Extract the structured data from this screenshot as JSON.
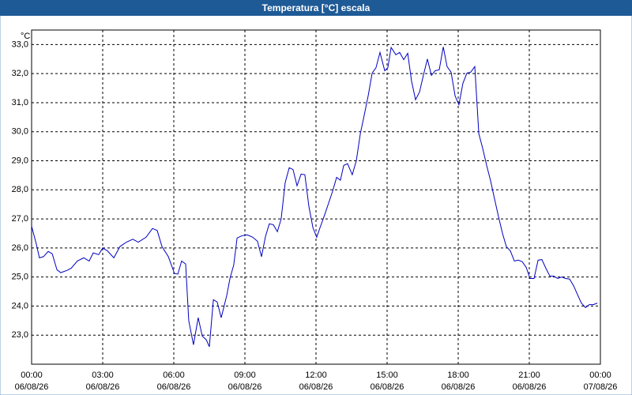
{
  "chart_data": {
    "type": "line",
    "title": "Temperatura [°C] escala",
    "y_unit": "°C",
    "x": [
      0,
      0.2,
      0.33,
      0.5,
      0.7,
      0.87,
      1.07,
      1.23,
      1.5,
      1.67,
      1.93,
      2.2,
      2.43,
      2.6,
      2.83,
      3.0,
      3.2,
      3.47,
      3.73,
      4.0,
      4.27,
      4.5,
      4.83,
      5.1,
      5.3,
      5.5,
      5.77,
      6.03,
      6.17,
      6.33,
      6.5,
      6.63,
      6.83,
      7.03,
      7.2,
      7.37,
      7.5,
      7.67,
      7.83,
      8.0,
      8.23,
      8.37,
      8.53,
      8.67,
      8.87,
      9.1,
      9.33,
      9.53,
      9.7,
      9.87,
      10.03,
      10.2,
      10.37,
      10.53,
      10.7,
      10.87,
      11.03,
      11.2,
      11.37,
      11.53,
      11.7,
      11.87,
      12.03,
      12.17,
      12.37,
      12.53,
      12.7,
      12.87,
      13.03,
      13.17,
      13.33,
      13.53,
      13.7,
      13.87,
      14.03,
      14.2,
      14.37,
      14.53,
      14.7,
      14.9,
      15.03,
      15.17,
      15.37,
      15.53,
      15.7,
      15.87,
      16.03,
      16.2,
      16.37,
      16.53,
      16.7,
      16.87,
      17.03,
      17.2,
      17.37,
      17.53,
      17.7,
      17.87,
      18.03,
      18.2,
      18.37,
      18.53,
      18.7,
      18.87,
      19.03,
      19.2,
      19.37,
      19.53,
      19.7,
      19.87,
      20.03,
      20.2,
      20.37,
      20.53,
      20.7,
      20.87,
      21.03,
      21.2,
      21.37,
      21.53,
      21.7,
      21.87,
      22.03,
      22.2,
      22.37,
      22.53,
      22.7,
      22.87,
      23.03,
      23.2,
      23.37,
      23.53,
      23.7,
      23.87
    ],
    "series": [
      {
        "name": "Temperatura",
        "color": "#0000c0",
        "values": [
          26.75,
          26.13,
          25.66,
          25.7,
          25.88,
          25.8,
          25.25,
          25.15,
          25.23,
          25.3,
          25.55,
          25.66,
          25.55,
          25.83,
          25.77,
          26.0,
          25.9,
          25.66,
          26.05,
          26.2,
          26.3,
          26.2,
          26.37,
          26.67,
          26.6,
          26.05,
          25.7,
          25.12,
          25.1,
          25.55,
          25.45,
          23.5,
          22.67,
          23.6,
          22.97,
          22.84,
          22.6,
          24.22,
          24.14,
          23.6,
          24.35,
          24.95,
          25.42,
          26.34,
          26.42,
          26.45,
          26.37,
          26.23,
          25.7,
          26.4,
          26.83,
          26.8,
          26.56,
          27.0,
          28.25,
          28.76,
          28.7,
          28.14,
          28.54,
          28.52,
          27.43,
          26.7,
          26.37,
          26.7,
          27.15,
          27.54,
          27.95,
          28.43,
          28.33,
          28.84,
          28.9,
          28.52,
          29.0,
          29.93,
          30.55,
          31.23,
          32.02,
          32.2,
          32.73,
          32.1,
          32.2,
          32.9,
          32.65,
          32.73,
          32.48,
          32.7,
          31.75,
          31.1,
          31.37,
          31.94,
          32.5,
          31.94,
          32.1,
          32.13,
          32.92,
          32.24,
          32.05,
          31.23,
          30.93,
          31.67,
          32.02,
          32.05,
          32.24,
          29.93,
          29.44,
          28.84,
          28.3,
          27.7,
          27.08,
          26.5,
          26.05,
          25.9,
          25.55,
          25.58,
          25.53,
          25.33,
          24.95,
          24.95,
          25.58,
          25.6,
          25.3,
          25.03,
          25.03,
          24.95,
          25.0,
          24.95,
          24.93,
          24.7,
          24.4,
          24.1,
          23.95,
          24.05,
          24.05,
          24.1
        ]
      }
    ],
    "xlim": [
      0,
      24
    ],
    "xticks": [
      {
        "value": 0,
        "label": "00:00",
        "date": "06/08/26"
      },
      {
        "value": 3,
        "label": "03:00",
        "date": "06/08/26"
      },
      {
        "value": 6,
        "label": "06:00",
        "date": "06/08/26"
      },
      {
        "value": 9,
        "label": "09:00",
        "date": "06/08/26"
      },
      {
        "value": 12,
        "label": "12:00",
        "date": "06/08/26"
      },
      {
        "value": 15,
        "label": "15:00",
        "date": "06/08/26"
      },
      {
        "value": 18,
        "label": "18:00",
        "date": "06/08/26"
      },
      {
        "value": 21,
        "label": "21:00",
        "date": "06/08/26"
      },
      {
        "value": 24,
        "label": "00:00",
        "date": "07/08/26"
      }
    ],
    "ylim": [
      22.0,
      33.5
    ],
    "yticks": [
      {
        "value": 23,
        "label": "23,0"
      },
      {
        "value": 24,
        "label": "24,0"
      },
      {
        "value": 25,
        "label": "25,0"
      },
      {
        "value": 26,
        "label": "26,0"
      },
      {
        "value": 27,
        "label": "27,0"
      },
      {
        "value": 28,
        "label": "28,0"
      },
      {
        "value": 29,
        "label": "29,0"
      },
      {
        "value": 30,
        "label": "30,0"
      },
      {
        "value": 31,
        "label": "31,0"
      },
      {
        "value": 32,
        "label": "32,0"
      },
      {
        "value": 33,
        "label": "33,0"
      }
    ],
    "grid": true
  }
}
